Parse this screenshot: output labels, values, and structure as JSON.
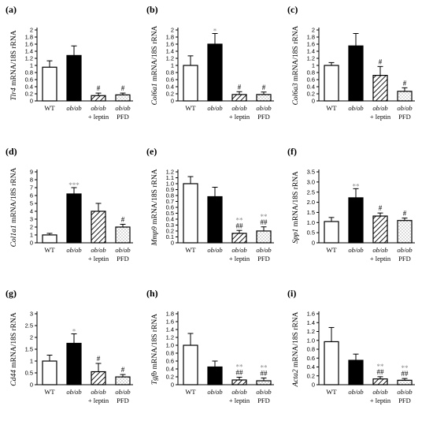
{
  "colors": {
    "bar_edge": "#000000",
    "ob_ob_fill": "#000000",
    "wt_fill": "#ffffff",
    "annotation_star": "#8a8a8a"
  },
  "fill_patterns": [
    "white",
    "black",
    "diagonal-hatch",
    "dots"
  ],
  "categories": [
    {
      "line1": "WT",
      "line2": ""
    },
    {
      "line1": "ob/ob",
      "line2": ""
    },
    {
      "line1": "ob/ob",
      "line2": "+ leptin"
    },
    {
      "line1": "ob/ob",
      "line2": "PFD"
    }
  ],
  "chart_data": [
    {
      "panel": "(a)",
      "type": "bar",
      "gene": "Tlr4",
      "ylabel_rest": " mRNA/18S rRNA",
      "values": [
        0.95,
        1.28,
        0.15,
        0.17
      ],
      "errors": [
        0.18,
        0.27,
        0.07,
        0.05
      ],
      "annotations": [
        "",
        "",
        "#",
        "#"
      ],
      "ylim": [
        0,
        2.0
      ],
      "yticks": [
        "0",
        "0.2",
        "0.4",
        "0.6",
        "0.8",
        "1",
        "1.2",
        "1.4",
        "1.6",
        "1.8",
        "2"
      ]
    },
    {
      "panel": "(b)",
      "type": "bar",
      "gene": "Col6a1",
      "ylabel_rest": " mRNA/18S rRNA",
      "values": [
        1.0,
        1.6,
        0.18,
        0.18
      ],
      "errors": [
        0.27,
        0.3,
        0.08,
        0.07
      ],
      "annotations": [
        "",
        "*",
        "#",
        "#"
      ],
      "ylim": [
        0,
        2.0
      ],
      "yticks": [
        "0",
        "0.2",
        "0.4",
        "0.6",
        "0.8",
        "1",
        "1.2",
        "1.4",
        "1.6",
        "1.8",
        "2"
      ]
    },
    {
      "panel": "(c)",
      "type": "bar",
      "gene": "Col6a3",
      "ylabel_rest": " mRNA/18S rRNA",
      "values": [
        1.0,
        1.55,
        0.72,
        0.27
      ],
      "errors": [
        0.08,
        0.35,
        0.25,
        0.1
      ],
      "annotations": [
        "",
        "",
        "#",
        "#"
      ],
      "ylim": [
        0,
        2.0
      ],
      "yticks": [
        "0",
        "0.2",
        "0.4",
        "0.6",
        "0.8",
        "1",
        "1.2",
        "1.4",
        "1.6",
        "1.8",
        "2"
      ]
    },
    {
      "panel": "(d)",
      "type": "bar",
      "gene": "Col1a1",
      "ylabel_rest": " mRNA/18S rRNA",
      "values": [
        1.0,
        6.2,
        4.0,
        2.0
      ],
      "errors": [
        0.2,
        0.8,
        1.0,
        0.35
      ],
      "annotations": [
        "",
        "***",
        "",
        "#"
      ],
      "ylim": [
        0,
        9
      ],
      "yticks": [
        "0",
        "1",
        "2",
        "3",
        "4",
        "5",
        "6",
        "7",
        "8",
        "9"
      ]
    },
    {
      "panel": "(e)",
      "type": "bar",
      "gene": "Mmp9",
      "ylabel_rest": " mRNA/18S rRNA",
      "values": [
        1.0,
        0.78,
        0.16,
        0.2
      ],
      "errors": [
        0.12,
        0.16,
        0.05,
        0.07
      ],
      "annotations": [
        "",
        "",
        "**|##",
        "**|##"
      ],
      "ylim": [
        0,
        1.2
      ],
      "yticks": [
        "0",
        "0.1",
        "0.2",
        "0.3",
        "0.4",
        "0.5",
        "0.6",
        "0.7",
        "0.8",
        "0.9",
        "1.0",
        "1.1",
        "1.2"
      ]
    },
    {
      "panel": "(f)",
      "type": "bar",
      "gene": "Spp1",
      "ylabel_rest": " mRNA/18S rRNA",
      "values": [
        1.05,
        2.22,
        1.32,
        1.1
      ],
      "errors": [
        0.2,
        0.45,
        0.15,
        0.12
      ],
      "annotations": [
        "",
        "**",
        "#",
        "#"
      ],
      "ylim": [
        0,
        3.5
      ],
      "yticks": [
        "0",
        "0.5",
        "1.0",
        "1.5",
        "2.0",
        "2.5",
        "3.0",
        "3.5"
      ]
    },
    {
      "panel": "(g)",
      "type": "bar",
      "gene": "Cd44",
      "ylabel_rest": " mRNA/18S rRNA",
      "values": [
        1.0,
        1.75,
        0.55,
        0.33
      ],
      "errors": [
        0.25,
        0.4,
        0.35,
        0.1
      ],
      "annotations": [
        "",
        "*",
        "#",
        "#"
      ],
      "ylim": [
        0,
        3.0
      ],
      "yticks": [
        "0",
        "0.5",
        "1",
        "1.5",
        "2",
        "2.5",
        "3"
      ]
    },
    {
      "panel": "(h)",
      "type": "bar",
      "gene": "Tgfb",
      "ylabel_rest": " mRNA/18S rRNA",
      "values": [
        1.0,
        0.45,
        0.12,
        0.1
      ],
      "errors": [
        0.3,
        0.15,
        0.07,
        0.07
      ],
      "annotations": [
        "",
        "",
        "**|##",
        "**|##"
      ],
      "ylim": [
        0,
        1.8
      ],
      "yticks": [
        "0",
        "0.2",
        "0.4",
        "0.6",
        "0.8",
        "1.0",
        "1.2",
        "1.4",
        "1.6",
        "1.8"
      ]
    },
    {
      "panel": "(i)",
      "type": "bar",
      "gene": "Acta2",
      "ylabel_rest": " mRNA/18S rRNA",
      "values": [
        0.97,
        0.55,
        0.13,
        0.1
      ],
      "errors": [
        0.32,
        0.14,
        0.05,
        0.04
      ],
      "annotations": [
        "",
        "",
        "**|##",
        "**|##"
      ],
      "ylim": [
        0,
        1.6
      ],
      "yticks": [
        "0",
        "0.2",
        "0.4",
        "0.6",
        "0.8",
        "1.0",
        "1.2",
        "1.4",
        "1.6"
      ]
    }
  ]
}
